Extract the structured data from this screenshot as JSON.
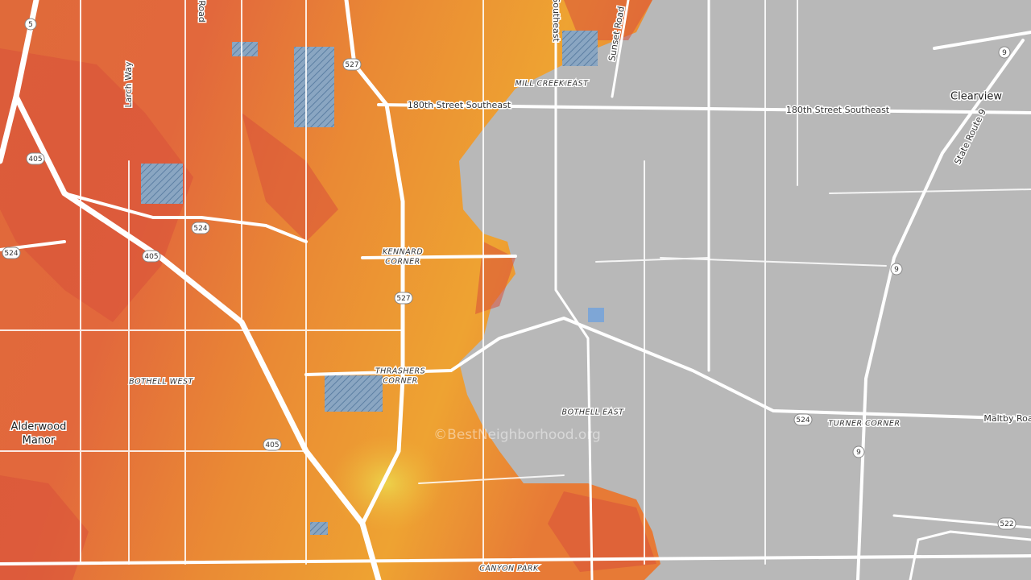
{
  "map": {
    "streets": [
      "180th Street Southeast",
      "180th Street Southeast",
      "Larch Way",
      "Road",
      "Southeast",
      "Sunset Road",
      "State Route 9",
      "Maltby Roa"
    ],
    "places": [
      [
        "MILL CREEK EAST"
      ],
      [
        "KENNARD",
        "CORNER"
      ],
      [
        "THRASHERS",
        "CORNER"
      ],
      [
        "BOTHELL WEST"
      ],
      [
        "BOTHELL EAST"
      ],
      [
        "TURNER CORNER"
      ],
      [
        "CANYON PARK"
      ]
    ],
    "towns": [
      [
        "Clearview"
      ],
      [
        "Alderwood",
        "Manor"
      ]
    ],
    "shields": [
      "5",
      "405",
      "405",
      "405",
      "527",
      "527",
      "524",
      "524",
      "524",
      "9",
      "9",
      "9",
      "522"
    ],
    "watermark": "©BestNeighborhood.org"
  }
}
